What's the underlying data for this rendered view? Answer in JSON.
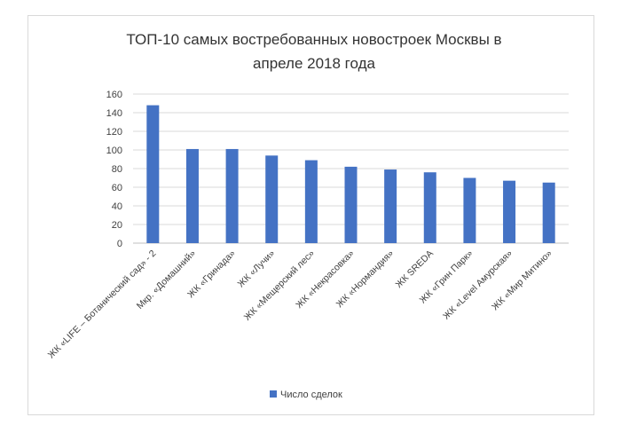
{
  "chart_data": {
    "type": "bar",
    "title_lines": [
      "ТОП-10 самых востребованных новостроек Москвы в",
      "апреле 2018 года"
    ],
    "categories": [
      "ЖК «LIFE – Ботанический сад» - 2",
      "Мкр. «Домашний»",
      "ЖК «Гринада»",
      "ЖК «Лучи»",
      "ЖК «Мещерский лес»",
      "ЖК «Некрасовка»",
      "ЖК «Нормандия»",
      "ЖК SREDA",
      "ЖК «Грин Парк»",
      "ЖК «Level Амурская»",
      "ЖК «Мир Митино»"
    ],
    "series": [
      {
        "name": "Число сделок",
        "color": "#4472C4",
        "values": [
          148,
          101,
          101,
          94,
          89,
          82,
          79,
          76,
          70,
          67,
          65
        ]
      }
    ],
    "ylim": [
      0,
      160
    ],
    "yticks": [
      0,
      20,
      40,
      60,
      80,
      100,
      120,
      140,
      160
    ],
    "grid": true,
    "legend_position": "bottom"
  }
}
